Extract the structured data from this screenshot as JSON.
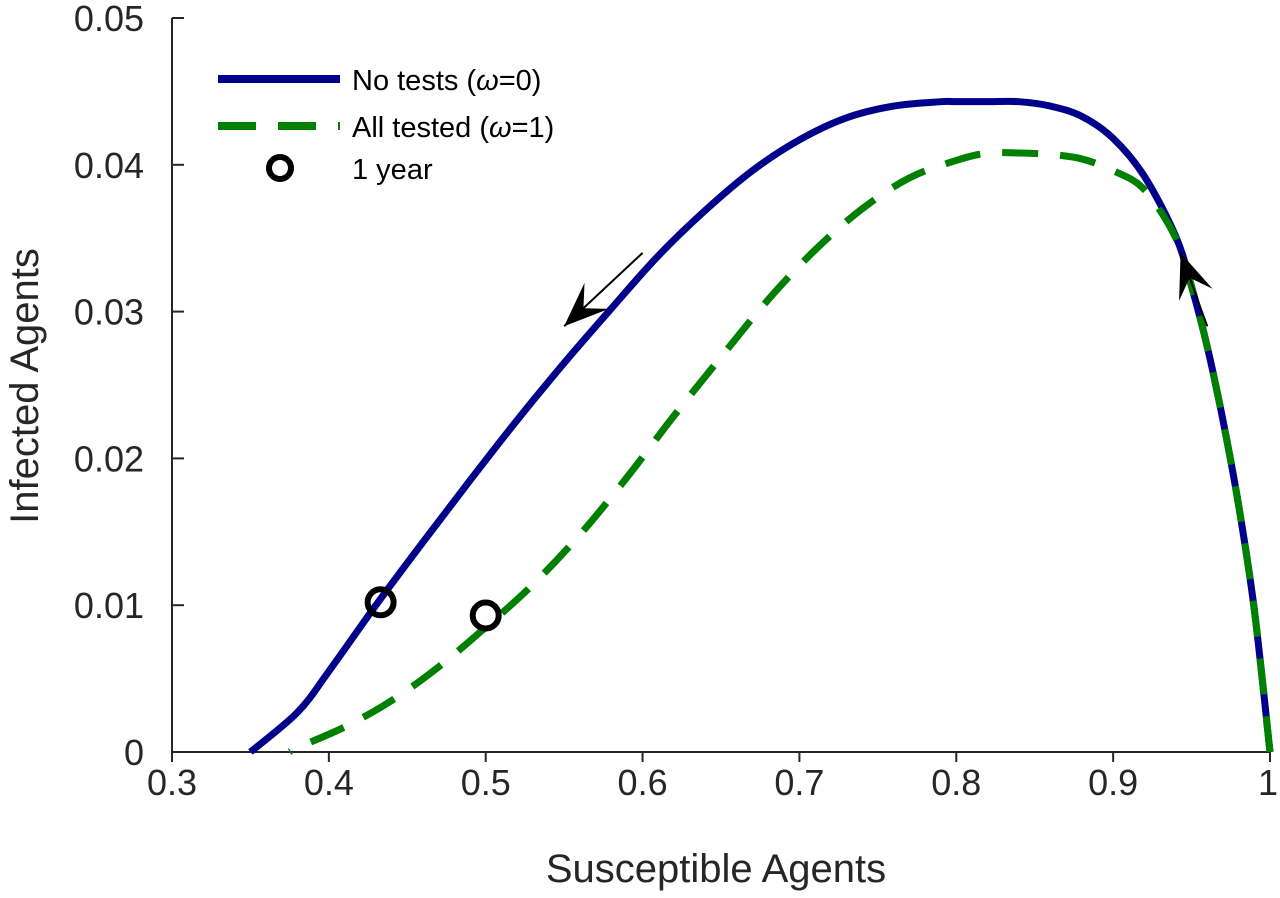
{
  "chart_data": {
    "type": "line",
    "xlabel": "Susceptible Agents",
    "ylabel": "Infected Agents",
    "xlim": [
      0.3,
      1.0
    ],
    "ylim": [
      0,
      0.05
    ],
    "x_ticks": [
      "0.3",
      "0.4",
      "0.5",
      "0.6",
      "0.7",
      "0.8",
      "0.9",
      "1"
    ],
    "y_ticks": [
      "0",
      "0.01",
      "0.02",
      "0.03",
      "0.04",
      "0.05"
    ],
    "grid": false,
    "legend_position": "top-left",
    "series": [
      {
        "name": "No tests (ω=0)",
        "legend_label": "No tests (",
        "legend_symbol": "ω",
        "legend_suffix": "=0)",
        "color": "#00008b",
        "style": "solid",
        "x": [
          1.0,
          0.99,
          0.98,
          0.97,
          0.96,
          0.95,
          0.94,
          0.92,
          0.9,
          0.88,
          0.86,
          0.84,
          0.82,
          0.8,
          0.79,
          0.76,
          0.73,
          0.7,
          0.67,
          0.64,
          0.61,
          0.58,
          0.55,
          0.52,
          0.49,
          0.46,
          0.43,
          0.4,
          0.38,
          0.35
        ],
        "y": [
          0.0,
          0.0097,
          0.0168,
          0.0226,
          0.0276,
          0.0317,
          0.0351,
          0.0392,
          0.0418,
          0.0433,
          0.044,
          0.0443,
          0.0443,
          0.0443,
          0.0443,
          0.044,
          0.0432,
          0.0417,
          0.0396,
          0.0369,
          0.0338,
          0.0302,
          0.0265,
          0.0226,
          0.0185,
          0.0143,
          0.01,
          0.0055,
          0.0027,
          0.0
        ]
      },
      {
        "name": "All tested (ω=1)",
        "legend_label": "All tested (",
        "legend_symbol": "ω",
        "legend_suffix": "=1)",
        "color": "#008000",
        "style": "dashed",
        "x": [
          1.0,
          0.99,
          0.98,
          0.97,
          0.96,
          0.95,
          0.94,
          0.92,
          0.9,
          0.88,
          0.86,
          0.84,
          0.82,
          0.8,
          0.77,
          0.74,
          0.71,
          0.68,
          0.65,
          0.62,
          0.59,
          0.56,
          0.53,
          0.5,
          0.47,
          0.44,
          0.41,
          0.38,
          0.375
        ],
        "y": [
          0.0,
          0.0097,
          0.0168,
          0.0226,
          0.0276,
          0.0317,
          0.035,
          0.0383,
          0.0396,
          0.0404,
          0.0407,
          0.0408,
          0.0408,
          0.0403,
          0.0391,
          0.037,
          0.0342,
          0.0308,
          0.0269,
          0.0229,
          0.0187,
          0.0148,
          0.0114,
          0.0085,
          0.0058,
          0.0035,
          0.0017,
          0.0003,
          0.0
        ]
      }
    ],
    "markers": {
      "name": "1 year",
      "style": "circle",
      "color": "#000000",
      "points": [
        {
          "x": 0.433,
          "y": 0.0102
        },
        {
          "x": 0.5,
          "y": 0.0093
        }
      ]
    },
    "arrows": [
      {
        "from": [
          0.6,
          0.034
        ],
        "to": [
          0.55,
          0.029
        ]
      },
      {
        "from": [
          0.96,
          0.029
        ],
        "to": [
          0.943,
          0.034
        ]
      }
    ]
  }
}
